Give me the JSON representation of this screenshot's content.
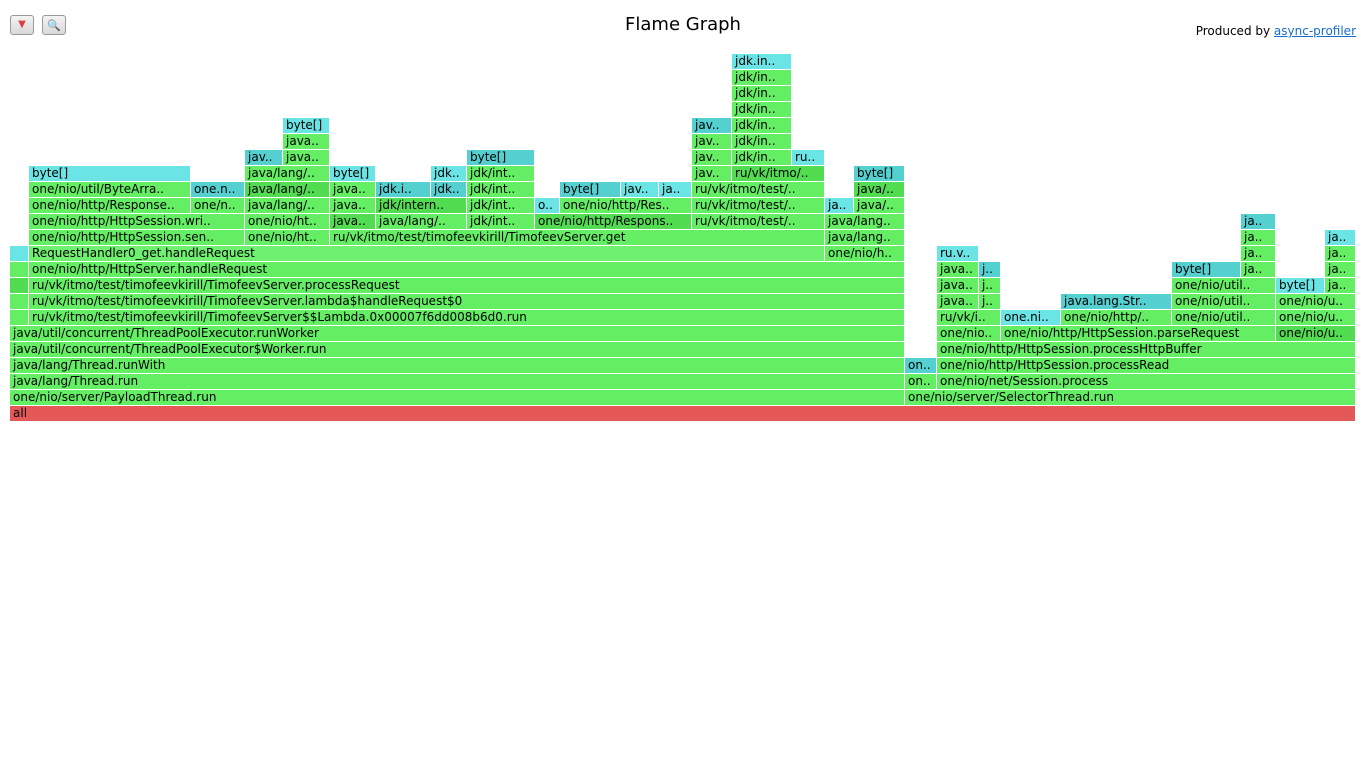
{
  "toolbar": {
    "reverse_icon": "triangle-down-icon",
    "reverse_glyph": "▼",
    "search_icon": "search-icon",
    "search_glyph": "🔍"
  },
  "header": {
    "title": "Flame Graph",
    "produced_by_prefix": "Produced by",
    "produced_by_link": "async-profiler"
  },
  "colors": {
    "green": "#64ee64",
    "light_green": "#70f070",
    "dark_green": "#52dc52",
    "cyan": "#6ae4e4",
    "teal": "#54d0d0",
    "root_red": "#e45858"
  },
  "flame": {
    "frames": [
      [
        "all",
        10,
        1356,
        406,
        "root_red"
      ],
      [
        "one/nio/server/PayloadThread.run",
        10,
        905,
        390,
        "green"
      ],
      [
        "java/lang/Thread.run",
        10,
        905,
        374,
        "green"
      ],
      [
        "java/lang/Thread.runWith",
        10,
        905,
        358,
        "green"
      ],
      [
        "java/util/concurrent/ThreadPoolExecutor$Worker.run",
        10,
        905,
        342,
        "green"
      ],
      [
        "java/util/concurrent/ThreadPoolExecutor.runWorker",
        10,
        905,
        326,
        "green"
      ],
      [
        "",
        10,
        29,
        310,
        "green"
      ],
      [
        "ru/vk/itmo/test/timofeevkirill/TimofeevServer$$Lambda.0x00007f6dd008b6d0.run",
        29,
        905,
        310,
        "green"
      ],
      [
        "",
        10,
        29,
        294,
        "green"
      ],
      [
        "ru/vk/itmo/test/timofeevkirill/TimofeevServer.lambda$handleRequest$0",
        29,
        905,
        294,
        "green"
      ],
      [
        "",
        10,
        29,
        278,
        "dark_green"
      ],
      [
        "ru/vk/itmo/test/timofeevkirill/TimofeevServer.processRequest",
        29,
        905,
        278,
        "green"
      ],
      [
        "",
        10,
        29,
        262,
        "green"
      ],
      [
        "one/nio/http/HttpServer.handleRequest",
        29,
        905,
        262,
        "green"
      ],
      [
        "",
        10,
        29,
        246,
        "cyan"
      ],
      [
        "RequestHandler0_get.handleRequest",
        29,
        825,
        246,
        "light_green"
      ],
      [
        "one/nio/http/HttpSession.sen..",
        29,
        245,
        230,
        "green"
      ],
      [
        "one/nio/ht..",
        245,
        330,
        230,
        "green"
      ],
      [
        "ru/vk/itmo/test/timofeevkirill/TimofeevServer.get",
        330,
        825,
        230,
        "green"
      ],
      [
        "one/nio/http/HttpSession.wri..",
        29,
        245,
        214,
        "green"
      ],
      [
        "one/nio/ht..",
        245,
        330,
        214,
        "green"
      ],
      [
        "java..",
        330,
        376,
        214,
        "dark_green"
      ],
      [
        "java/lang/..",
        376,
        467,
        214,
        "green"
      ],
      [
        "jdk/int..",
        467,
        535,
        214,
        "green"
      ],
      [
        "one/nio/http/Respons..",
        535,
        692,
        214,
        "dark_green"
      ],
      [
        "ru/vk/itmo/test/..",
        692,
        825,
        214,
        "green"
      ],
      [
        "one/nio/http/Response..",
        29,
        191,
        198,
        "green"
      ],
      [
        "one/n..",
        191,
        245,
        198,
        "green"
      ],
      [
        "java/lang/..",
        245,
        330,
        198,
        "green"
      ],
      [
        "java..",
        330,
        376,
        198,
        "green"
      ],
      [
        "jdk/intern..",
        376,
        467,
        198,
        "dark_green"
      ],
      [
        "jdk/int..",
        467,
        535,
        198,
        "green"
      ],
      [
        "o..",
        535,
        560,
        198,
        "cyan"
      ],
      [
        "one/nio/http/Res..",
        560,
        692,
        198,
        "green"
      ],
      [
        "ru/vk/itmo/test/..",
        692,
        825,
        198,
        "green"
      ],
      [
        "one/nio/util/ByteArra..",
        29,
        191,
        182,
        "green"
      ],
      [
        "one.n..",
        191,
        245,
        182,
        "teal"
      ],
      [
        "java/lang/..",
        245,
        330,
        182,
        "dark_green"
      ],
      [
        "java..",
        330,
        376,
        182,
        "green"
      ],
      [
        "jdk.i..",
        376,
        431,
        182,
        "teal"
      ],
      [
        "jdk..",
        431,
        467,
        182,
        "teal"
      ],
      [
        "jdk/int..",
        467,
        535,
        182,
        "green"
      ],
      [
        "byte[]",
        560,
        621,
        182,
        "teal"
      ],
      [
        "jav..",
        621,
        659,
        182,
        "cyan"
      ],
      [
        "ja..",
        659,
        692,
        182,
        "cyan"
      ],
      [
        "ru/vk/itmo/test/..",
        692,
        825,
        182,
        "green"
      ],
      [
        "byte[]",
        29,
        191,
        166,
        "cyan"
      ],
      [
        "java/lang/..",
        245,
        330,
        166,
        "green"
      ],
      [
        "byte[]",
        330,
        376,
        166,
        "cyan"
      ],
      [
        "jdk..",
        431,
        467,
        166,
        "cyan"
      ],
      [
        "jdk/int..",
        467,
        535,
        166,
        "green"
      ],
      [
        "jav..",
        692,
        732,
        166,
        "green"
      ],
      [
        "ru/vk/itmo/..",
        732,
        825,
        166,
        "dark_green"
      ],
      [
        "jav..",
        245,
        283,
        150,
        "teal"
      ],
      [
        "java..",
        283,
        330,
        150,
        "green"
      ],
      [
        "byte[]",
        467,
        535,
        150,
        "teal"
      ],
      [
        "jav..",
        692,
        732,
        150,
        "green"
      ],
      [
        "jdk/in..",
        732,
        792,
        150,
        "green"
      ],
      [
        "ru..",
        792,
        825,
        150,
        "cyan"
      ],
      [
        "java..",
        283,
        330,
        134,
        "green"
      ],
      [
        "jav..",
        692,
        732,
        134,
        "green"
      ],
      [
        "jdk/in..",
        732,
        792,
        134,
        "green"
      ],
      [
        "byte[]",
        283,
        330,
        118,
        "cyan"
      ],
      [
        "jav..",
        692,
        732,
        118,
        "teal"
      ],
      [
        "jdk/in..",
        732,
        792,
        118,
        "green"
      ],
      [
        "jdk/in..",
        732,
        792,
        102,
        "green"
      ],
      [
        "jdk/in..",
        732,
        792,
        86,
        "green"
      ],
      [
        "jdk/in..",
        732,
        792,
        70,
        "green"
      ],
      [
        "jdk.in..",
        732,
        792,
        54,
        "cyan"
      ],
      [
        "one/nio/h..",
        825,
        905,
        246,
        "green"
      ],
      [
        "java/lang..",
        825,
        905,
        230,
        "green"
      ],
      [
        "java/lang..",
        825,
        905,
        214,
        "green"
      ],
      [
        "ja..",
        825,
        854,
        198,
        "cyan"
      ],
      [
        "java/..",
        854,
        905,
        198,
        "green"
      ],
      [
        "java/..",
        854,
        905,
        182,
        "dark_green"
      ],
      [
        "byte[]",
        854,
        905,
        166,
        "teal"
      ],
      [
        "one/nio/server/SelectorThread.run",
        905,
        1356,
        390,
        "green"
      ],
      [
        "on..",
        905,
        937,
        374,
        "green"
      ],
      [
        "one/nio/net/Session.process",
        937,
        1356,
        374,
        "green"
      ],
      [
        "on..",
        905,
        937,
        358,
        "teal"
      ],
      [
        "one/nio/http/HttpSession.processRead",
        937,
        1356,
        358,
        "green"
      ],
      [
        "one/nio/http/HttpSession.processHttpBuffer",
        937,
        1356,
        342,
        "green"
      ],
      [
        "one/nio..",
        937,
        1001,
        326,
        "green"
      ],
      [
        "one/nio/http/HttpSession.parseRequest",
        1001,
        1276,
        326,
        "green"
      ],
      [
        "one/nio/u..",
        1276,
        1356,
        326,
        "dark_green"
      ],
      [
        "ru/vk/i..",
        937,
        1001,
        310,
        "green"
      ],
      [
        "one.ni..",
        1001,
        1061,
        310,
        "cyan"
      ],
      [
        "one/nio/http/..",
        1061,
        1172,
        310,
        "green"
      ],
      [
        "one/nio/util..",
        1172,
        1276,
        310,
        "green"
      ],
      [
        "one/nio/u..",
        1276,
        1356,
        310,
        "green"
      ],
      [
        "java..",
        937,
        979,
        294,
        "green"
      ],
      [
        "j..",
        979,
        1001,
        294,
        "green"
      ],
      [
        "java.lang.Str..",
        1061,
        1172,
        294,
        "teal"
      ],
      [
        "one/nio/util..",
        1172,
        1276,
        294,
        "green"
      ],
      [
        "one/nio/u..",
        1276,
        1356,
        294,
        "green"
      ],
      [
        "java..",
        937,
        979,
        278,
        "green"
      ],
      [
        "j..",
        979,
        1001,
        278,
        "green"
      ],
      [
        "one/nio/util..",
        1172,
        1276,
        278,
        "green"
      ],
      [
        "byte[]",
        1276,
        1325,
        278,
        "cyan"
      ],
      [
        "ja..",
        1325,
        1356,
        278,
        "green"
      ],
      [
        "java..",
        937,
        979,
        262,
        "green"
      ],
      [
        "j..",
        979,
        1001,
        262,
        "teal"
      ],
      [
        "byte[]",
        1172,
        1241,
        262,
        "teal"
      ],
      [
        "ja..",
        1241,
        1276,
        262,
        "green"
      ],
      [
        "ja..",
        1325,
        1356,
        262,
        "green"
      ],
      [
        "ru.v..",
        937,
        979,
        246,
        "cyan"
      ],
      [
        "ja..",
        1241,
        1276,
        246,
        "green"
      ],
      [
        "ja..",
        1325,
        1356,
        246,
        "green"
      ],
      [
        "ja..",
        1241,
        1276,
        230,
        "green"
      ],
      [
        "ja..",
        1325,
        1356,
        230,
        "cyan"
      ],
      [
        "ja..",
        1241,
        1276,
        214,
        "teal"
      ]
    ]
  }
}
